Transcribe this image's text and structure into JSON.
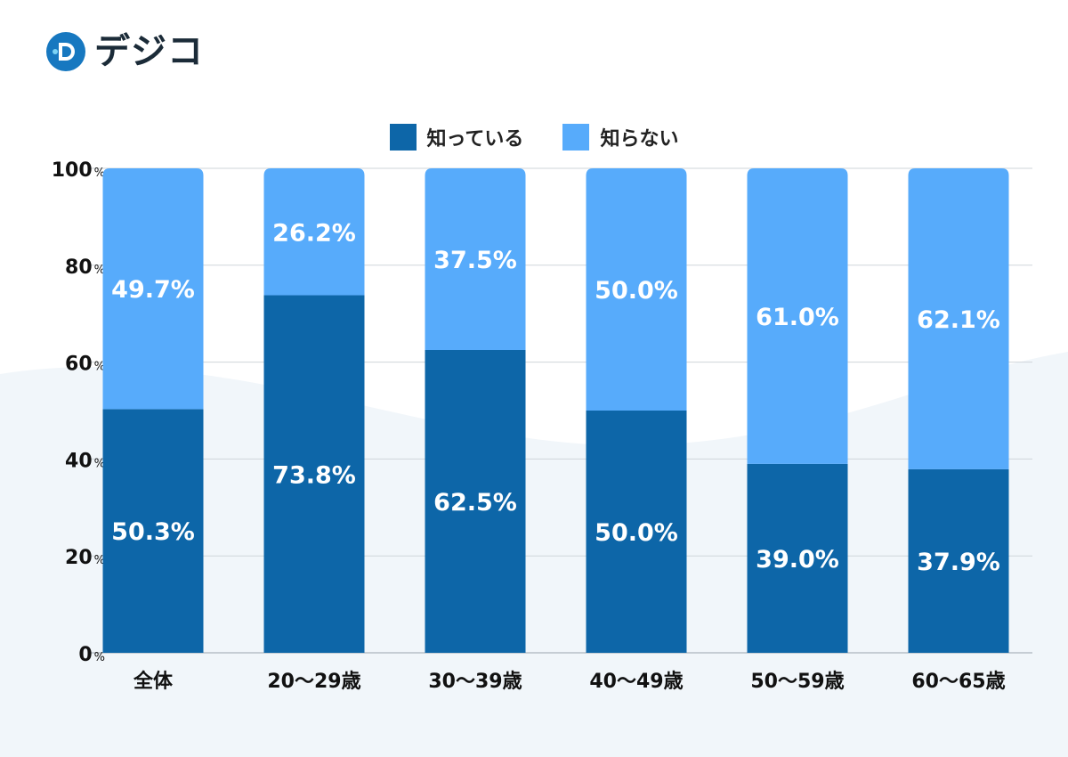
{
  "logo": {
    "text": "デジコ"
  },
  "chart_data": {
    "type": "bar",
    "stacked": true,
    "categories": [
      "全体",
      "20〜29歳",
      "30〜39歳",
      "40〜49歳",
      "50〜59歳",
      "60〜65歳"
    ],
    "series": [
      {
        "name": "知っている",
        "color": "#0d66a8",
        "values": [
          50.3,
          73.8,
          62.5,
          50.0,
          39.0,
          37.9
        ],
        "labels": [
          "50.3%",
          "73.8%",
          "62.5%",
          "50.0%",
          "39.0%",
          "37.9%"
        ]
      },
      {
        "name": "知らない",
        "color": "#57abfb",
        "values": [
          49.7,
          26.2,
          37.5,
          50.0,
          61.0,
          62.1
        ],
        "labels": [
          "49.7%",
          "26.2%",
          "37.5%",
          "50.0%",
          "61.0%",
          "62.1%"
        ]
      }
    ],
    "yticks": [
      0,
      20,
      40,
      60,
      80,
      100
    ],
    "ytick_unit": "%",
    "ylim": [
      0,
      100
    ],
    "grid": true,
    "legend_position": "top-center"
  }
}
